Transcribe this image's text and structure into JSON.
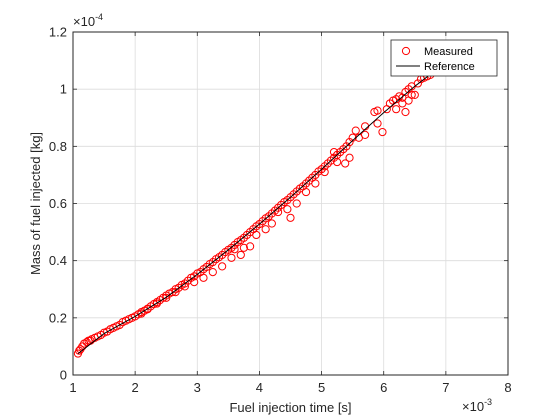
{
  "chart_data": {
    "type": "scatter",
    "xlabel": "Fuel injection time [s]",
    "ylabel": "Mass of fuel injected [kg]",
    "x_exponent_label": "×10",
    "x_exponent_power": "-3",
    "y_exponent_label": "×10",
    "y_exponent_power": "-4",
    "xlim": [
      1,
      8
    ],
    "ylim": [
      0,
      1.2
    ],
    "x_ticks": [
      "1",
      "2",
      "3",
      "4",
      "5",
      "6",
      "7",
      "8"
    ],
    "y_ticks": [
      "0",
      "0.2",
      "0.4",
      "0.6",
      "0.8",
      "1",
      "1.2"
    ],
    "grid": true,
    "legend_position": "top-right",
    "series": [
      {
        "name": "Measured",
        "marker": "circle",
        "color": "#ff0000",
        "points": [
          [
            1.08,
            0.075
          ],
          [
            1.1,
            0.085
          ],
          [
            1.12,
            0.09
          ],
          [
            1.15,
            0.1
          ],
          [
            1.18,
            0.11
          ],
          [
            1.22,
            0.115
          ],
          [
            1.25,
            0.12
          ],
          [
            1.3,
            0.125
          ],
          [
            1.35,
            0.13
          ],
          [
            1.4,
            0.135
          ],
          [
            1.45,
            0.14
          ],
          [
            1.5,
            0.148
          ],
          [
            1.55,
            0.152
          ],
          [
            1.6,
            0.16
          ],
          [
            1.65,
            0.165
          ],
          [
            1.75,
            0.175
          ],
          [
            1.8,
            0.185
          ],
          [
            1.85,
            0.19
          ],
          [
            1.9,
            0.195
          ],
          [
            1.95,
            0.2
          ],
          [
            2.0,
            0.205
          ],
          [
            2.05,
            0.212
          ],
          [
            2.1,
            0.22
          ],
          [
            2.15,
            0.225
          ],
          [
            2.2,
            0.232
          ],
          [
            2.25,
            0.24
          ],
          [
            2.3,
            0.248
          ],
          [
            2.35,
            0.255
          ],
          [
            2.4,
            0.262
          ],
          [
            2.45,
            0.27
          ],
          [
            2.5,
            0.278
          ],
          [
            2.55,
            0.285
          ],
          [
            2.6,
            0.29
          ],
          [
            2.65,
            0.3
          ],
          [
            2.7,
            0.305
          ],
          [
            2.75,
            0.315
          ],
          [
            2.8,
            0.32
          ],
          [
            2.85,
            0.33
          ],
          [
            2.9,
            0.34
          ],
          [
            2.95,
            0.345
          ],
          [
            3.0,
            0.355
          ],
          [
            3.05,
            0.36
          ],
          [
            3.1,
            0.37
          ],
          [
            3.15,
            0.378
          ],
          [
            3.2,
            0.388
          ],
          [
            3.25,
            0.395
          ],
          [
            3.3,
            0.405
          ],
          [
            3.35,
            0.412
          ],
          [
            3.4,
            0.42
          ],
          [
            3.45,
            0.43
          ],
          [
            3.5,
            0.438
          ],
          [
            3.55,
            0.445
          ],
          [
            3.6,
            0.455
          ],
          [
            3.65,
            0.465
          ],
          [
            3.7,
            0.472
          ],
          [
            3.75,
            0.48
          ],
          [
            3.8,
            0.49
          ],
          [
            3.85,
            0.5
          ],
          [
            3.9,
            0.51
          ],
          [
            3.95,
            0.52
          ],
          [
            4.0,
            0.528
          ],
          [
            4.05,
            0.538
          ],
          [
            4.1,
            0.548
          ],
          [
            4.15,
            0.555
          ],
          [
            4.2,
            0.565
          ],
          [
            4.25,
            0.575
          ],
          [
            4.3,
            0.585
          ],
          [
            4.35,
            0.595
          ],
          [
            4.4,
            0.605
          ],
          [
            4.45,
            0.612
          ],
          [
            4.5,
            0.622
          ],
          [
            4.55,
            0.632
          ],
          [
            4.6,
            0.642
          ],
          [
            4.65,
            0.652
          ],
          [
            4.7,
            0.66
          ],
          [
            4.75,
            0.67
          ],
          [
            4.8,
            0.68
          ],
          [
            4.85,
            0.69
          ],
          [
            4.9,
            0.7
          ],
          [
            4.95,
            0.712
          ],
          [
            5.0,
            0.72
          ],
          [
            5.05,
            0.73
          ],
          [
            5.1,
            0.74
          ],
          [
            5.15,
            0.75
          ],
          [
            5.2,
            0.76
          ],
          [
            5.25,
            0.77
          ],
          [
            5.3,
            0.78
          ],
          [
            5.35,
            0.79
          ],
          [
            5.4,
            0.8
          ],
          [
            5.45,
            0.815
          ],
          [
            5.5,
            0.83
          ],
          [
            5.55,
            0.855
          ],
          [
            5.45,
            0.76
          ],
          [
            5.38,
            0.74
          ],
          [
            4.45,
            0.58
          ],
          [
            4.5,
            0.55
          ],
          [
            4.2,
            0.53
          ],
          [
            4.6,
            0.6
          ],
          [
            3.85,
            0.45
          ],
          [
            3.7,
            0.42
          ],
          [
            3.55,
            0.41
          ],
          [
            3.4,
            0.38
          ],
          [
            3.25,
            0.36
          ],
          [
            3.1,
            0.34
          ],
          [
            2.95,
            0.325
          ],
          [
            2.8,
            0.31
          ],
          [
            2.65,
            0.29
          ],
          [
            2.5,
            0.27
          ],
          [
            2.35,
            0.25
          ],
          [
            2.2,
            0.23
          ],
          [
            4.9,
            0.67
          ],
          [
            5.2,
            0.78
          ],
          [
            5.6,
            0.83
          ],
          [
            5.7,
            0.84
          ],
          [
            5.85,
            0.92
          ],
          [
            5.9,
            0.925
          ],
          [
            5.98,
            0.85
          ],
          [
            6.05,
            0.93
          ],
          [
            6.1,
            0.95
          ],
          [
            6.15,
            0.96
          ],
          [
            6.2,
            0.965
          ],
          [
            6.25,
            0.975
          ],
          [
            6.3,
            0.97
          ],
          [
            6.35,
            0.99
          ],
          [
            6.4,
            1.0
          ],
          [
            6.45,
            1.01
          ],
          [
            6.5,
            0.98
          ],
          [
            6.55,
            1.02
          ],
          [
            6.6,
            1.035
          ],
          [
            6.65,
            1.04
          ],
          [
            6.7,
            1.045
          ],
          [
            6.75,
            1.05
          ],
          [
            6.35,
            0.92
          ],
          [
            6.3,
            0.95
          ],
          [
            6.2,
            0.93
          ],
          [
            6.4,
            0.96
          ],
          [
            6.45,
            0.98
          ],
          [
            5.9,
            0.88
          ],
          [
            5.7,
            0.87
          ],
          [
            4.1,
            0.51
          ],
          [
            3.95,
            0.49
          ],
          [
            3.6,
            0.44
          ],
          [
            3.75,
            0.445
          ],
          [
            4.3,
            0.57
          ],
          [
            4.75,
            0.64
          ],
          [
            5.05,
            0.71
          ],
          [
            5.25,
            0.745
          ],
          [
            2.1,
            0.215
          ],
          [
            1.7,
            0.17
          ],
          [
            1.28,
            0.12
          ]
        ]
      },
      {
        "name": "Reference",
        "color": "#000000",
        "points": [
          [
            1.08,
            0.075
          ],
          [
            1.5,
            0.145
          ],
          [
            2,
            0.205
          ],
          [
            2.5,
            0.272
          ],
          [
            3,
            0.352
          ],
          [
            3.5,
            0.438
          ],
          [
            4,
            0.528
          ],
          [
            4.5,
            0.622
          ],
          [
            5,
            0.72
          ],
          [
            5.5,
            0.82
          ],
          [
            6,
            0.918
          ],
          [
            6.5,
            1.01
          ],
          [
            6.8,
            1.06
          ]
        ]
      }
    ]
  }
}
